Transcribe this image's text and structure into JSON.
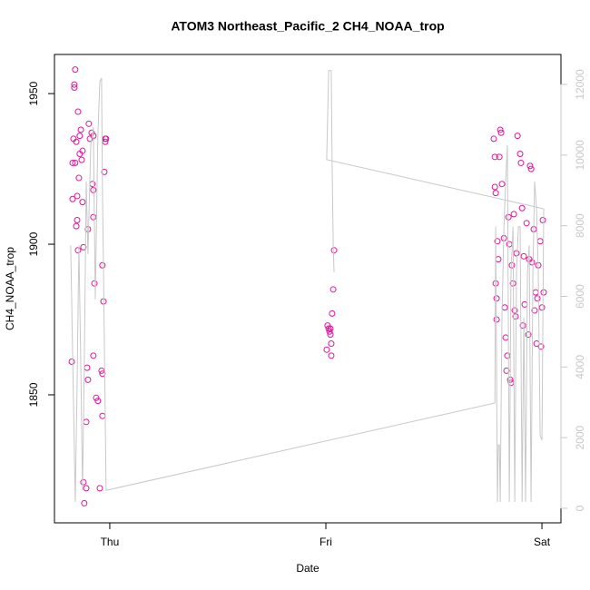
{
  "chart_data": {
    "type": "scatter",
    "title": "ATOM3 Northeast_Pacific_2 CH4_NOAA_trop",
    "xlabel": "Date",
    "ylabel": "CH4_NOAA_trop",
    "xlim": [
      -0.256,
      2.088
    ],
    "xticks": [
      {
        "value": 0,
        "label": "Thu"
      },
      {
        "value": 1,
        "label": "Fri"
      },
      {
        "value": 2,
        "label": "Sat"
      }
    ],
    "ylim": [
      1807.5,
      1963
    ],
    "yticks": [
      1850,
      1900,
      1950
    ],
    "y2lim": [
      -411,
      12848
    ],
    "y2ticks": [
      0,
      2000,
      4000,
      6000,
      8000,
      10000,
      12000
    ],
    "y2color": "#c8c8c8",
    "series": [
      {
        "kind": "points",
        "color": "#e0149a",
        "x": [
          -0.176,
          -0.16,
          -0.164,
          -0.164,
          -0.147,
          -0.168,
          -0.155,
          -0.139,
          -0.134,
          -0.172,
          -0.16,
          -0.139,
          -0.126,
          -0.143,
          -0.151,
          -0.172,
          -0.126,
          -0.155,
          -0.101,
          -0.147,
          -0.122,
          -0.071,
          -0.105,
          -0.101,
          -0.109,
          -0.122,
          -0.109,
          -0.118,
          -0.097,
          -0.092,
          -0.084,
          -0.076,
          -0.08,
          -0.076,
          -0.076,
          -0.063,
          -0.055,
          -0.076,
          -0.046,
          -0.038,
          -0.034,
          -0.034,
          -0.034,
          -0.029,
          -0.025,
          -0.021,
          -0.017,
          -0.021,
          -0.13,
          -0.151,
          1.004,
          1.008,
          1.013,
          1.017,
          1.021,
          1.025,
          1.021,
          1.029,
          1.034,
          1.038,
          1.025,
          1.777,
          1.782,
          1.782,
          1.786,
          1.786,
          1.79,
          1.79,
          1.794,
          1.798,
          1.803,
          1.807,
          1.811,
          1.815,
          1.824,
          1.828,
          1.832,
          1.836,
          1.84,
          1.845,
          1.849,
          1.853,
          1.857,
          1.861,
          1.866,
          1.87,
          1.874,
          1.878,
          1.882,
          1.887,
          1.899,
          1.903,
          1.908,
          1.912,
          1.916,
          1.92,
          1.929,
          1.937,
          1.941,
          1.945,
          1.95,
          1.954,
          1.962,
          1.966,
          1.971,
          1.975,
          1.979,
          1.983,
          1.992,
          1.996,
          2.0,
          2.004,
          2.008
        ],
        "values": [
          1861,
          1958,
          1953,
          1952,
          1944,
          1935,
          1934,
          1936,
          1938,
          1927,
          1927,
          1930,
          1931,
          1922,
          1916,
          1915,
          1914,
          1906,
          1905,
          1898,
          1899,
          1887,
          1859,
          1855,
          1841,
          1821,
          1819,
          1814,
          1940,
          1935,
          1937,
          1936,
          1920,
          1918,
          1909,
          1849,
          1848,
          1863,
          1819,
          1858,
          1857,
          1843,
          1893,
          1881,
          1924,
          1935,
          1935,
          1934,
          1928,
          1908,
          1865,
          1873,
          1872,
          1871,
          1870,
          1867,
          1872,
          1877,
          1885,
          1898,
          1863,
          1935,
          1929,
          1919,
          1917,
          1887,
          1882,
          1875,
          1901,
          1895,
          1929,
          1938,
          1937,
          1920,
          1902,
          1879,
          1869,
          1858,
          1863,
          1909,
          1900,
          1855,
          1854,
          1893,
          1887,
          1910,
          1878,
          1876,
          1897,
          1936,
          1930,
          1927,
          1912,
          1873,
          1896,
          1880,
          1907,
          1870,
          1895,
          1926,
          1925,
          1894,
          1905,
          1878,
          1884,
          1867,
          1882,
          1893,
          1901,
          1866,
          1879,
          1908,
          1884
        ]
      },
      {
        "kind": "line",
        "axis": "y2",
        "color": "#c8c8c8",
        "x": [
          -0.181,
          -0.168,
          -0.16,
          -0.151,
          -0.143,
          -0.134,
          -0.126,
          -0.118,
          -0.109,
          -0.101,
          -0.088,
          -0.076,
          -0.067,
          -0.055,
          -0.046,
          -0.038,
          -0.034,
          -0.025,
          -0.017,
          1.782,
          1.786,
          1.794,
          1.798,
          1.803,
          1.807,
          1.815,
          1.824,
          1.832,
          1.84,
          1.849,
          1.857,
          1.866,
          1.874,
          1.882,
          1.891,
          1.899,
          1.908,
          1.916,
          1.924,
          1.933,
          1.941,
          1.95,
          1.958,
          1.966,
          1.975,
          1.983,
          1.992,
          2.0,
          2.008,
          1.004,
          1.013,
          1.025,
          1.029,
          1.034,
          1.038
        ],
        "values": [
          7450,
          3080,
          180,
          3600,
          7450,
          4110,
          510,
          4110,
          9250,
          7200,
          10280,
          10790,
          5910,
          10540,
          12080,
          12180,
          9250,
          4630,
          510,
          2980,
          7970,
          180,
          1800,
          1800,
          180,
          5400,
          7970,
          9250,
          10280,
          180,
          6680,
          7970,
          180,
          6680,
          7970,
          7970,
          180,
          5400,
          180,
          6680,
          7450,
          180,
          6680,
          9250,
          8480,
          6680,
          2060,
          1930,
          8480,
          9870,
          12390,
          12390,
          9770,
          7450,
          6680
        ]
      }
    ]
  }
}
